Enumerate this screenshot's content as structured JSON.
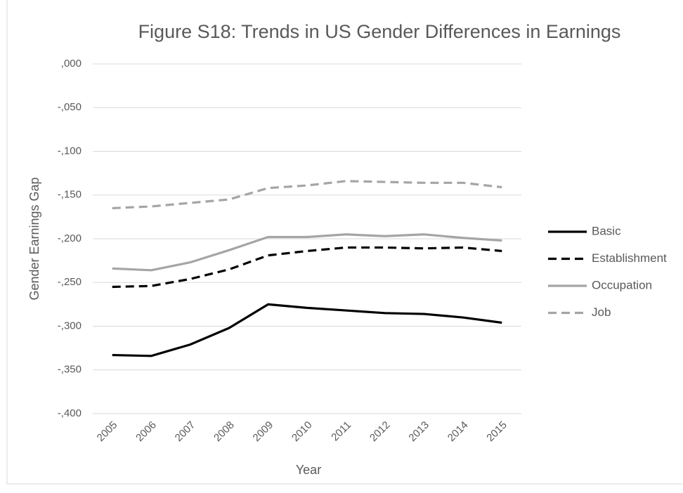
{
  "chart_data": {
    "type": "line",
    "title": "Figure S18: Trends in US Gender Differences in Earnings",
    "x_label": "Year",
    "y_label": "Gender Earnings Gap",
    "categories": [
      "2005",
      "2006",
      "2007",
      "2008",
      "2009",
      "2010",
      "2011",
      "2012",
      "2013",
      "2014",
      "2015"
    ],
    "series": [
      {
        "name": "Basic",
        "color": "#000000",
        "dash": false,
        "values": [
          -0.333,
          -0.334,
          -0.321,
          -0.302,
          -0.275,
          -0.279,
          -0.282,
          -0.285,
          -0.286,
          -0.29,
          -0.296
        ]
      },
      {
        "name": "Establishment",
        "color": "#000000",
        "dash": true,
        "values": [
          -0.255,
          -0.254,
          -0.246,
          -0.235,
          -0.219,
          -0.214,
          -0.21,
          -0.21,
          -0.211,
          -0.21,
          -0.214
        ]
      },
      {
        "name": "Occupation",
        "color": "#a5a5a5",
        "dash": false,
        "values": [
          -0.234,
          -0.236,
          -0.227,
          -0.213,
          -0.198,
          -0.198,
          -0.195,
          -0.197,
          -0.195,
          -0.199,
          -0.202
        ]
      },
      {
        "name": "Job",
        "color": "#a5a5a5",
        "dash": true,
        "values": [
          -0.165,
          -0.163,
          -0.159,
          -0.155,
          -0.142,
          -0.139,
          -0.134,
          -0.135,
          -0.136,
          -0.136,
          -0.141
        ]
      }
    ],
    "ylim": [
      -0.4,
      0
    ],
    "yticks": [
      {
        "value": 0,
        "label": ",000"
      },
      {
        "value": -0.05,
        "label": "-,050"
      },
      {
        "value": -0.1,
        "label": "-,100"
      },
      {
        "value": -0.15,
        "label": "-,150"
      },
      {
        "value": -0.2,
        "label": "-,200"
      },
      {
        "value": -0.25,
        "label": "-,250"
      },
      {
        "value": -0.3,
        "label": "-,300"
      },
      {
        "value": -0.35,
        "label": "-,350"
      },
      {
        "value": -0.4,
        "label": "-,400"
      }
    ],
    "grid": true,
    "legend": "right"
  }
}
